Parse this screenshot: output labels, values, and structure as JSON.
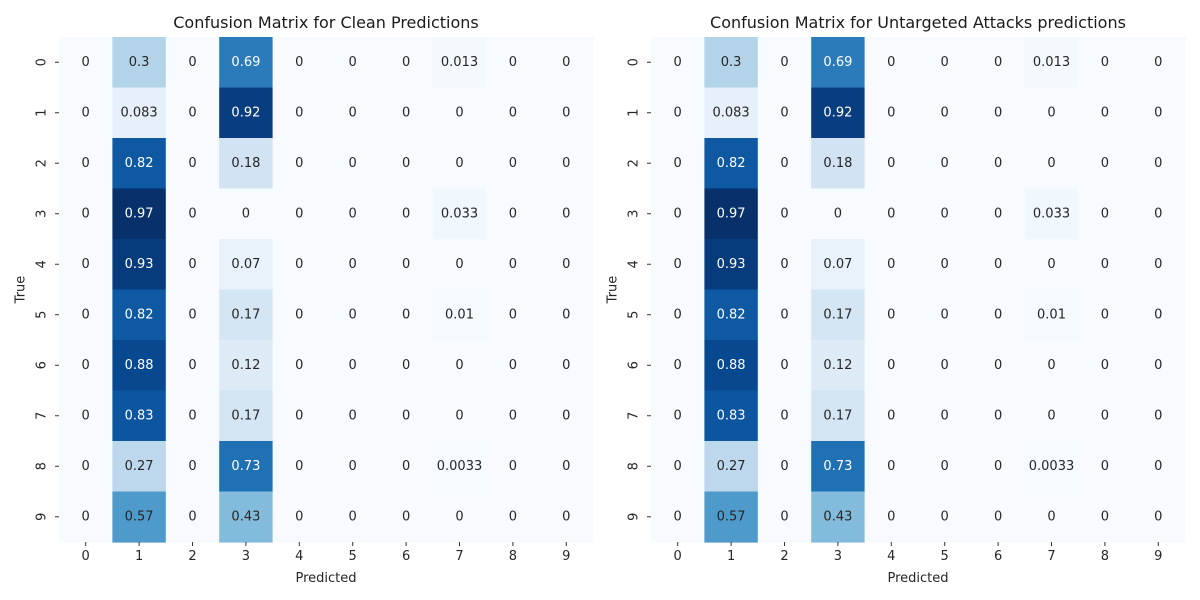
{
  "chart_data": [
    {
      "type": "heatmap",
      "title": "Confusion Matrix for Clean Predictions",
      "xlabel": "Predicted",
      "ylabel": "True",
      "x_ticks": [
        "0",
        "1",
        "2",
        "3",
        "4",
        "5",
        "6",
        "7",
        "8",
        "9"
      ],
      "y_ticks": [
        "0",
        "1",
        "2",
        "3",
        "4",
        "5",
        "6",
        "7",
        "8",
        "9"
      ],
      "colormap": "Blues",
      "value_range": [
        0,
        0.97
      ],
      "values": [
        [
          0,
          0.3,
          0,
          0.69,
          0,
          0,
          0,
          0.013,
          0,
          0
        ],
        [
          0,
          0.083,
          0,
          0.92,
          0,
          0,
          0,
          0,
          0,
          0
        ],
        [
          0,
          0.82,
          0,
          0.18,
          0,
          0,
          0,
          0,
          0,
          0
        ],
        [
          0,
          0.97,
          0,
          0,
          0,
          0,
          0,
          0.033,
          0,
          0
        ],
        [
          0,
          0.93,
          0,
          0.07,
          0,
          0,
          0,
          0,
          0,
          0
        ],
        [
          0,
          0.82,
          0,
          0.17,
          0,
          0,
          0,
          0.01,
          0,
          0
        ],
        [
          0,
          0.88,
          0,
          0.12,
          0,
          0,
          0,
          0,
          0,
          0
        ],
        [
          0,
          0.83,
          0,
          0.17,
          0,
          0,
          0,
          0,
          0,
          0
        ],
        [
          0,
          0.27,
          0,
          0.73,
          0,
          0,
          0,
          0.0033,
          0,
          0
        ],
        [
          0,
          0.57,
          0,
          0.43,
          0,
          0,
          0,
          0,
          0,
          0
        ]
      ]
    },
    {
      "type": "heatmap",
      "title": "Confusion Matrix for Untargeted Attacks predictions",
      "xlabel": "Predicted",
      "ylabel": "True",
      "x_ticks": [
        "0",
        "1",
        "2",
        "3",
        "4",
        "5",
        "6",
        "7",
        "8",
        "9"
      ],
      "y_ticks": [
        "0",
        "1",
        "2",
        "3",
        "4",
        "5",
        "6",
        "7",
        "8",
        "9"
      ],
      "colormap": "Blues",
      "value_range": [
        0,
        0.97
      ],
      "values": [
        [
          0,
          0.3,
          0,
          0.69,
          0,
          0,
          0,
          0.013,
          0,
          0
        ],
        [
          0,
          0.083,
          0,
          0.92,
          0,
          0,
          0,
          0,
          0,
          0
        ],
        [
          0,
          0.82,
          0,
          0.18,
          0,
          0,
          0,
          0,
          0,
          0
        ],
        [
          0,
          0.97,
          0,
          0,
          0,
          0,
          0,
          0.033,
          0,
          0
        ],
        [
          0,
          0.93,
          0,
          0.07,
          0,
          0,
          0,
          0,
          0,
          0
        ],
        [
          0,
          0.82,
          0,
          0.17,
          0,
          0,
          0,
          0.01,
          0,
          0
        ],
        [
          0,
          0.88,
          0,
          0.12,
          0,
          0,
          0,
          0,
          0,
          0
        ],
        [
          0,
          0.83,
          0,
          0.17,
          0,
          0,
          0,
          0,
          0,
          0
        ],
        [
          0,
          0.27,
          0,
          0.73,
          0,
          0,
          0,
          0.0033,
          0,
          0
        ],
        [
          0,
          0.57,
          0,
          0.43,
          0,
          0,
          0,
          0,
          0,
          0
        ]
      ]
    }
  ]
}
